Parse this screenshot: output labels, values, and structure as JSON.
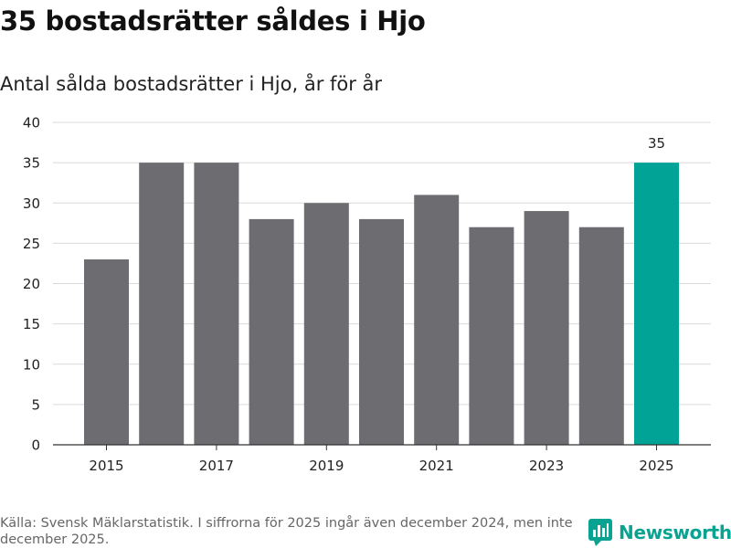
{
  "header": {
    "title": "35 bostadsrätter såldes i Hjo",
    "subtitle": "Antal sålda bostadsrätter i Hjo, år för år"
  },
  "footer": {
    "source": "Källa: Svensk Mäklarstatistik. I siffrorna för 2025 ingår även december 2024, men inte december 2025.",
    "brand": "Newsworthy"
  },
  "colors": {
    "bar": "#6d6c71",
    "highlight": "#00a396",
    "brand": "#0aa291",
    "grid": "#d9d9d9"
  },
  "chart_data": {
    "type": "bar",
    "title": "35 bostadsrätter såldes i Hjo",
    "subtitle": "Antal sålda bostadsrätter i Hjo, år för år",
    "xlabel": "",
    "ylabel": "",
    "categories": [
      "2015",
      "2016",
      "2017",
      "2018",
      "2019",
      "2020",
      "2021",
      "2022",
      "2023",
      "2024",
      "2025"
    ],
    "values": [
      23,
      35,
      35,
      28,
      30,
      28,
      31,
      27,
      29,
      27,
      35
    ],
    "highlight_category": "2025",
    "data_labels": [
      {
        "category": "2025",
        "text": "35"
      }
    ],
    "x_tick_labels": [
      "2015",
      "2017",
      "2019",
      "2021",
      "2023",
      "2025"
    ],
    "y_ticks": [
      0,
      5,
      10,
      15,
      20,
      25,
      30,
      35,
      40
    ],
    "ylim": [
      0,
      40
    ],
    "grid": "horizontal",
    "legend": "none"
  }
}
